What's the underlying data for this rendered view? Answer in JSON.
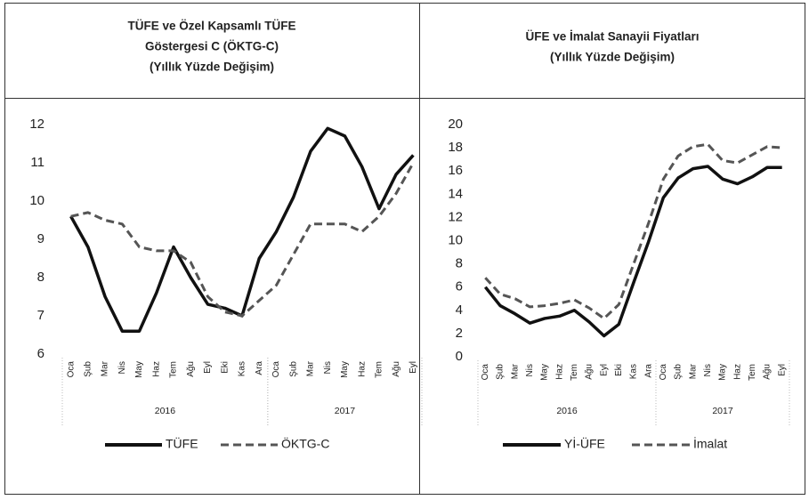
{
  "chart_data": [
    {
      "type": "line",
      "title": [
        "TÜFE ve Özel Kapsamlı TÜFE",
        "Göstergesi C (ÖKTG-C)",
        "(Yıllık Yüzde Değişim)"
      ],
      "groups": [
        {
          "label": "2016",
          "categories": [
            "Oca",
            "Şub",
            "Mar",
            "Nis",
            "May",
            "Haz",
            "Tem",
            "Ağu",
            "Eyl",
            "Eki",
            "Kas",
            "Ara"
          ]
        },
        {
          "label": "2017",
          "categories": [
            "Oca",
            "Şub",
            "Mar",
            "Nis",
            "May",
            "Haz",
            "Tem",
            "Ağu",
            "Eyl"
          ]
        }
      ],
      "series": [
        {
          "name": "TÜFE",
          "color": "#111111",
          "dash": false,
          "values": [
            9.6,
            8.8,
            7.5,
            6.6,
            6.6,
            7.6,
            8.8,
            8.0,
            7.3,
            7.2,
            7.0,
            8.5,
            9.2,
            10.1,
            11.3,
            11.9,
            11.7,
            10.9,
            9.8,
            10.7,
            11.2
          ]
        },
        {
          "name": "ÖKTG-C",
          "color": "#555555",
          "dash": true,
          "values": [
            9.6,
            9.7,
            9.5,
            9.4,
            8.8,
            8.7,
            8.7,
            8.4,
            7.5,
            7.1,
            7.0,
            7.4,
            7.8,
            8.6,
            9.4,
            9.4,
            9.4,
            9.2,
            9.6,
            10.2,
            11.0
          ]
        }
      ],
      "ylim": [
        6,
        12
      ],
      "yticks": [
        6,
        7,
        8,
        9,
        10,
        11,
        12
      ],
      "grid": false,
      "legend": "bottom"
    },
    {
      "type": "line",
      "title": [
        "ÜFE ve İmalat Sanayii Fiyatları",
        "(Yıllık Yüzde Değişim)"
      ],
      "groups": [
        {
          "label": "2016",
          "categories": [
            "Oca",
            "Şub",
            "Mar",
            "Nis",
            "May",
            "Haz",
            "Tem",
            "Ağu",
            "Eyl",
            "Eki",
            "Kas",
            "Ara"
          ]
        },
        {
          "label": "2017",
          "categories": [
            "Oca",
            "Şub",
            "Mar",
            "Nis",
            "May",
            "Haz",
            "Tem",
            "Ağu",
            "Eyl"
          ]
        }
      ],
      "series": [
        {
          "name": "Yİ-ÜFE",
          "color": "#111111",
          "dash": false,
          "values": [
            6.0,
            4.4,
            3.7,
            2.9,
            3.3,
            3.5,
            4.0,
            3.0,
            1.8,
            2.8,
            6.4,
            9.9,
            13.7,
            15.4,
            16.2,
            16.4,
            15.3,
            14.9,
            15.5,
            16.3,
            16.3
          ]
        },
        {
          "name": "İmalat",
          "color": "#555555",
          "dash": true,
          "values": [
            6.8,
            5.4,
            5.0,
            4.3,
            4.4,
            4.6,
            4.9,
            4.2,
            3.3,
            4.5,
            8.0,
            11.5,
            15.3,
            17.3,
            18.1,
            18.3,
            16.9,
            16.7,
            17.4,
            18.1,
            18.0
          ]
        }
      ],
      "ylim": [
        0,
        20
      ],
      "yticks": [
        0,
        2,
        4,
        6,
        8,
        10,
        12,
        14,
        16,
        18,
        20
      ],
      "grid": false,
      "legend": "bottom"
    }
  ]
}
